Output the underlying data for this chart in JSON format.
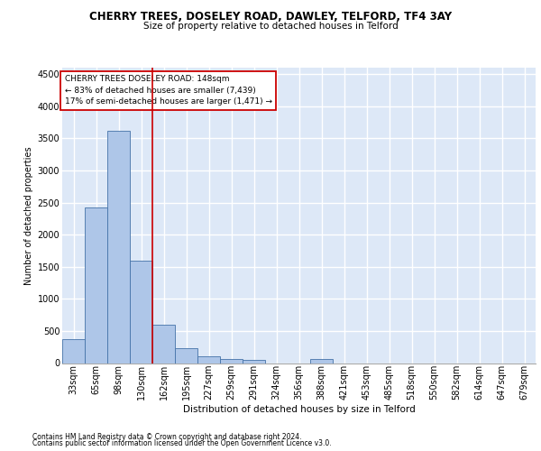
{
  "title1": "CHERRY TREES, DOSELEY ROAD, DAWLEY, TELFORD, TF4 3AY",
  "title2": "Size of property relative to detached houses in Telford",
  "xlabel": "Distribution of detached houses by size in Telford",
  "ylabel": "Number of detached properties",
  "footnote1": "Contains HM Land Registry data © Crown copyright and database right 2024.",
  "footnote2": "Contains public sector information licensed under the Open Government Licence v3.0.",
  "annotation_line1": "CHERRY TREES DOSELEY ROAD: 148sqm",
  "annotation_line2": "← 83% of detached houses are smaller (7,439)",
  "annotation_line3": "17% of semi-detached houses are larger (1,471) →",
  "bar_labels": [
    "33sqm",
    "65sqm",
    "98sqm",
    "130sqm",
    "162sqm",
    "195sqm",
    "227sqm",
    "259sqm",
    "291sqm",
    "324sqm",
    "356sqm",
    "388sqm",
    "421sqm",
    "453sqm",
    "485sqm",
    "518sqm",
    "550sqm",
    "582sqm",
    "614sqm",
    "647sqm",
    "679sqm"
  ],
  "bar_values": [
    370,
    2420,
    3620,
    1590,
    590,
    230,
    110,
    65,
    45,
    0,
    0,
    60,
    0,
    0,
    0,
    0,
    0,
    0,
    0,
    0,
    0
  ],
  "bar_color": "#aec6e8",
  "bar_edge_color": "#4472a8",
  "red_line_x": 3.5,
  "ylim": [
    0,
    4600
  ],
  "yticks": [
    0,
    500,
    1000,
    1500,
    2000,
    2500,
    3000,
    3500,
    4000,
    4500
  ],
  "bg_color": "#dde8f7",
  "grid_color": "#ffffff",
  "box_color": "#cc0000",
  "title1_fontsize": 8.5,
  "title2_fontsize": 7.5,
  "xlabel_fontsize": 7.5,
  "ylabel_fontsize": 7,
  "tick_fontsize": 7,
  "annotation_fontsize": 6.5,
  "footnote_fontsize": 5.5
}
